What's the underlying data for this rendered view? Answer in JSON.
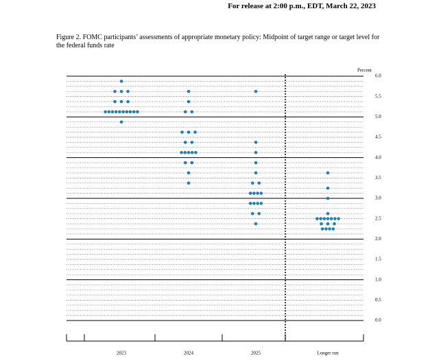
{
  "header": {
    "release": "For release at 2:00 p.m., EDT, March 22, 2023"
  },
  "chart_data": {
    "type": "dot",
    "title": "Figure 2.  FOMC participants’ assessments of appropriate monetary policy:  Midpoint of target range or target level for the federal funds rate",
    "y_label": "Percent",
    "categories": [
      "2023",
      "2024",
      "2025",
      "Longer run"
    ],
    "points": [
      [
        {
          "rate": 5.875,
          "count": 1
        },
        {
          "rate": 5.625,
          "count": 3
        },
        {
          "rate": 5.375,
          "count": 3
        },
        {
          "rate": 5.125,
          "count": 10
        },
        {
          "rate": 4.875,
          "count": 1
        }
      ],
      [
        {
          "rate": 5.625,
          "count": 1
        },
        {
          "rate": 5.375,
          "count": 1
        },
        {
          "rate": 5.125,
          "count": 2
        },
        {
          "rate": 4.625,
          "count": 3
        },
        {
          "rate": 4.375,
          "count": 2
        },
        {
          "rate": 4.125,
          "count": 5
        },
        {
          "rate": 3.875,
          "count": 2
        },
        {
          "rate": 3.625,
          "count": 1
        },
        {
          "rate": 3.375,
          "count": 1
        }
      ],
      [
        {
          "rate": 5.625,
          "count": 1
        },
        {
          "rate": 4.375,
          "count": 1
        },
        {
          "rate": 4.125,
          "count": 1
        },
        {
          "rate": 3.875,
          "count": 1
        },
        {
          "rate": 3.625,
          "count": 1
        },
        {
          "rate": 3.375,
          "count": 2
        },
        {
          "rate": 3.125,
          "count": 4
        },
        {
          "rate": 2.875,
          "count": 4
        },
        {
          "rate": 2.625,
          "count": 2
        },
        {
          "rate": 2.375,
          "count": 1
        }
      ],
      [
        {
          "rate": 3.625,
          "count": 1
        },
        {
          "rate": 3.25,
          "count": 1
        },
        {
          "rate": 3.0,
          "count": 1
        },
        {
          "rate": 2.625,
          "count": 1
        },
        {
          "rate": 2.5,
          "count": 7
        },
        {
          "rate": 2.375,
          "count": 3
        },
        {
          "rate": 2.25,
          "count": 4
        }
      ]
    ],
    "color": "#1f7fb4",
    "ylim": [
      0,
      6
    ],
    "yticks": [
      {
        "value": 0,
        "label": "0.0"
      },
      0.5,
      {
        "value": 1,
        "label": "1.0"
      },
      1.5,
      {
        "value": 2,
        "label": "2.0"
      },
      2.5,
      {
        "value": 3,
        "label": "3.0"
      },
      3.5,
      {
        "value": 4,
        "label": "4.0"
      },
      4.5,
      {
        "value": 5,
        "label": "5.0"
      },
      5.5,
      {
        "value": 6,
        "label": "6.0"
      }
    ],
    "grid_step": 0.125
  }
}
